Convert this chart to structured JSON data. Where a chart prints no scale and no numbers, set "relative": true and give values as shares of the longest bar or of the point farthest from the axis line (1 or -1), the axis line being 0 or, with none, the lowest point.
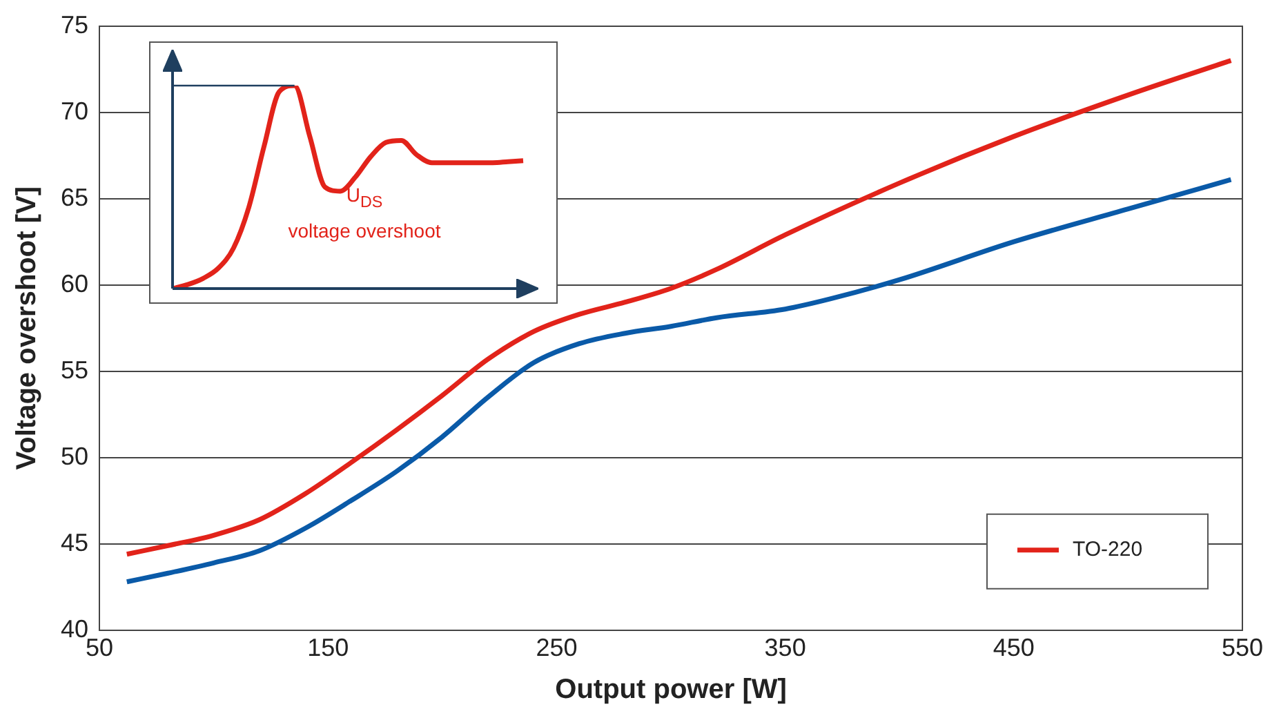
{
  "chart_data": [
    {
      "type": "line",
      "xlabel": "Output power [W]",
      "ylabel": "Voltage overshoot [V]",
      "xlim": [
        50,
        550
      ],
      "xticks": [
        50,
        150,
        250,
        350,
        450,
        550
      ],
      "ylim": [
        40,
        75
      ],
      "yticks": [
        40,
        45,
        50,
        55,
        60,
        65,
        70,
        75
      ],
      "grid": "y",
      "legend": "bottom right",
      "marker": "none",
      "line_style": "solid",
      "series": [
        {
          "color": "#0a5aa8",
          "x": [
            62,
            80,
            100,
            120,
            140,
            160,
            180,
            200,
            220,
            240,
            260,
            280,
            300,
            320,
            350,
            370,
            400,
            450,
            500,
            545
          ],
          "values": [
            42.8,
            43.3,
            43.9,
            44.6,
            45.9,
            47.5,
            49.2,
            51.2,
            53.5,
            55.5,
            56.6,
            57.2,
            57.6,
            58.1,
            58.6,
            59.2,
            60.3,
            62.5,
            64.4,
            66.1
          ]
        },
        {
          "name": "TO-220",
          "color": "#e2231a",
          "x": [
            62,
            80,
            100,
            120,
            140,
            160,
            180,
            200,
            220,
            240,
            260,
            280,
            300,
            320,
            350,
            400,
            450,
            500,
            545
          ],
          "values": [
            44.4,
            44.9,
            45.5,
            46.4,
            47.9,
            49.7,
            51.6,
            53.6,
            55.7,
            57.3,
            58.3,
            59.0,
            59.8,
            60.9,
            62.9,
            65.9,
            68.6,
            71.0,
            73.0
          ]
        }
      ]
    },
    {
      "type": "line",
      "relative": true,
      "marker": "none",
      "line_style": "solid",
      "annotations": [
        "U$_{DS}$",
        "voltage overshoot"
      ],
      "ref_lines": [
        {
          "axis": "y",
          "value": 1,
          "color": "#1f3f5f"
        }
      ],
      "categories": [
        null,
        null,
        null,
        null,
        null,
        null,
        null,
        null,
        null,
        null,
        null,
        null,
        null,
        null,
        null,
        null,
        null,
        null,
        null,
        null,
        null,
        null,
        null,
        null
      ],
      "series": [
        {
          "color": "#e2231a",
          "values": [
            0,
            0.02,
            0.05,
            0.1,
            0.2,
            0.4,
            0.7,
            0.97,
            1,
            0.75,
            0.5,
            0.48,
            0.55,
            0.65,
            0.72,
            0.73,
            0.66,
            0.62,
            0.62,
            0.62,
            0.62,
            0.62,
            0.625,
            0.63
          ]
        }
      ]
    }
  ]
}
